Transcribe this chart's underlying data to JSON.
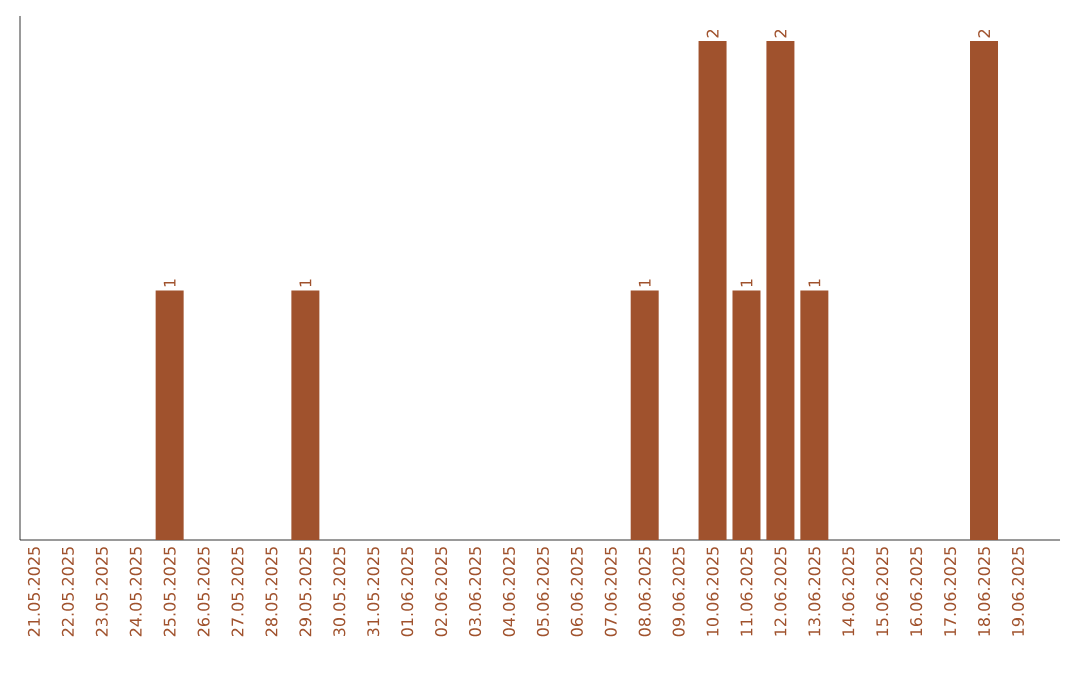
{
  "chart_data": {
    "type": "bar",
    "categories": [
      "21.05.2025",
      "22.05.2025",
      "23.05.2025",
      "24.05.2025",
      "25.05.2025",
      "26.05.2025",
      "27.05.2025",
      "28.05.2025",
      "29.05.2025",
      "30.05.2025",
      "31.05.2025",
      "01.06.2025",
      "02.06.2025",
      "03.06.2025",
      "04.06.2025",
      "05.06.2025",
      "06.06.2025",
      "07.06.2025",
      "08.06.2025",
      "09.06.2025",
      "10.06.2025",
      "11.06.2025",
      "12.06.2025",
      "13.06.2025",
      "14.06.2025",
      "15.06.2025",
      "16.06.2025",
      "17.06.2025",
      "18.06.2025",
      "19.06.2025"
    ],
    "values": [
      0,
      0,
      0,
      0,
      1,
      0,
      0,
      0,
      1,
      0,
      0,
      0,
      0,
      0,
      0,
      0,
      0,
      0,
      1,
      0,
      2,
      1,
      2,
      1,
      0,
      0,
      0,
      0,
      2,
      0
    ],
    "value_labels": [
      null,
      null,
      null,
      null,
      "1",
      null,
      null,
      null,
      "1",
      null,
      null,
      null,
      null,
      null,
      null,
      null,
      null,
      null,
      "1",
      null,
      "2",
      "1",
      "2",
      "1",
      null,
      null,
      null,
      null,
      "2",
      null
    ],
    "color": "#a0522d",
    "ylim": [
      0,
      2.1
    ],
    "tick_labels": "x",
    "grid": false
  }
}
